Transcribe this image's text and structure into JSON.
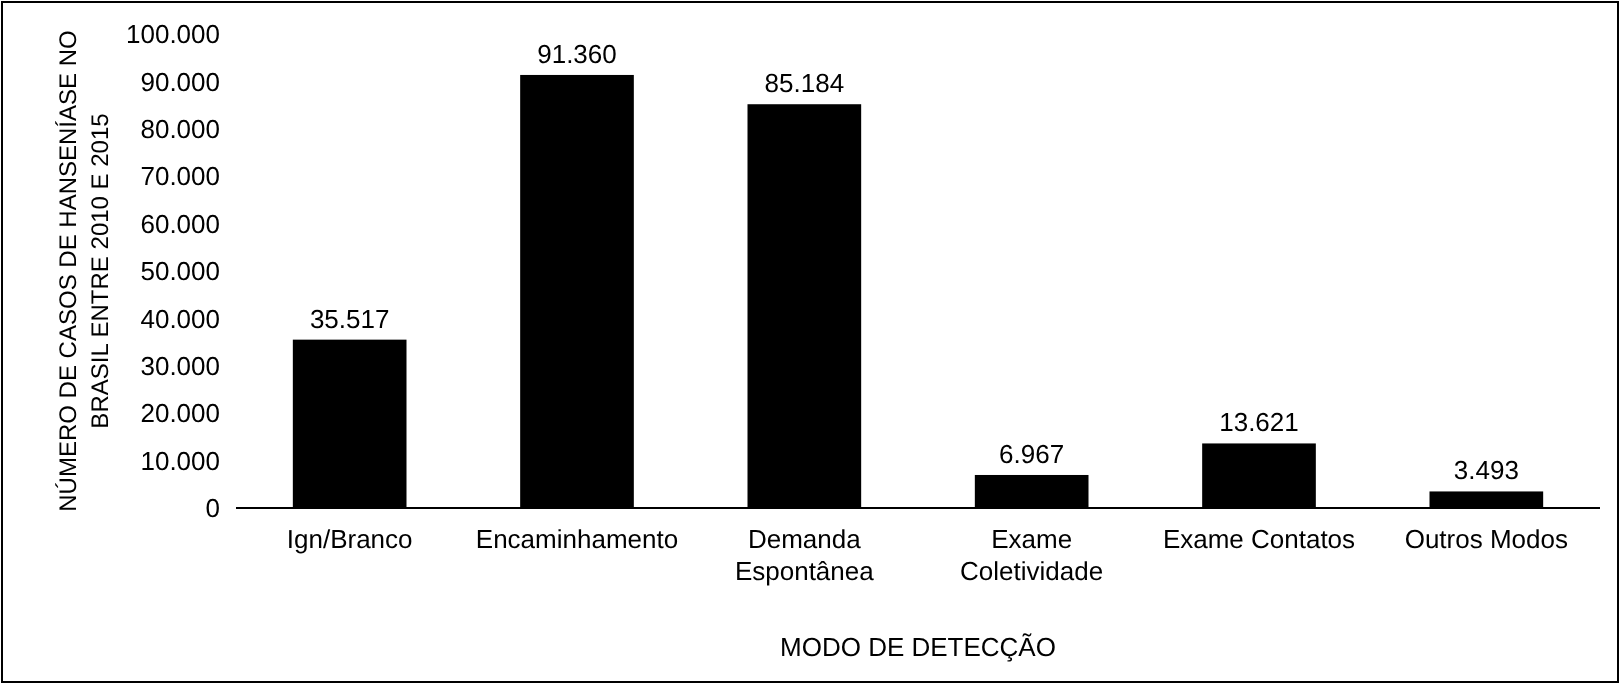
{
  "chart_data": {
    "type": "bar",
    "xlabel": "MODO DE DETECÇÃO",
    "ylabel": "NÚMERO DE CASOS DE HANSENÍASE NO BRASIL ENTRE 2010 E 2015",
    "categories": [
      "Ign/Branco",
      "Encaminhamento",
      "Demanda Espontânea",
      "Exame Coletividade",
      "Exame Contatos",
      "Outros Modos"
    ],
    "values": [
      35517,
      91360,
      85184,
      6967,
      13621,
      3493
    ],
    "value_labels": [
      "35.517",
      "91.360",
      "85.184",
      "6.967",
      "13.621",
      "3.493"
    ],
    "color": "#000000",
    "ylim": [
      0,
      100000
    ],
    "yticks": [
      0,
      {
        "value": 10000,
        "label": "10.000"
      },
      {
        "value": 20000,
        "label": "20.000"
      },
      {
        "value": 30000,
        "label": "30.000"
      },
      {
        "value": 40000,
        "label": "40.000"
      },
      {
        "value": 50000,
        "label": "50.000"
      },
      {
        "value": 60000,
        "label": "60.000"
      },
      {
        "value": 70000,
        "label": "70.000"
      },
      {
        "value": 80000,
        "label": "80.000"
      },
      {
        "value": 90000,
        "label": "90.000"
      },
      {
        "value": 100000,
        "label": "100.000"
      }
    ],
    "grid": false
  }
}
